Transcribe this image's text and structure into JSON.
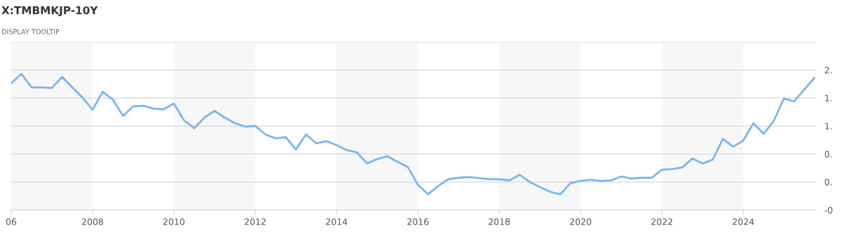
{
  "chart_data": {
    "type": "line",
    "title": "X:TMBMKJP-10Y",
    "subtitle": "DISPLAY TOOLTIP",
    "x": [
      2006.0,
      2006.25,
      2006.5,
      2006.75,
      2007.0,
      2007.25,
      2007.5,
      2007.75,
      2008.0,
      2008.25,
      2008.5,
      2008.75,
      2009.0,
      2009.25,
      2009.5,
      2009.75,
      2010.0,
      2010.25,
      2010.5,
      2010.75,
      2011.0,
      2011.25,
      2011.5,
      2011.75,
      2012.0,
      2012.25,
      2012.5,
      2012.75,
      2013.0,
      2013.25,
      2013.5,
      2013.75,
      2014.0,
      2014.25,
      2014.5,
      2014.75,
      2015.0,
      2015.25,
      2015.5,
      2015.75,
      2016.0,
      2016.25,
      2016.5,
      2016.75,
      2017.0,
      2017.25,
      2017.5,
      2017.75,
      2018.0,
      2018.25,
      2018.5,
      2018.75,
      2019.0,
      2019.25,
      2019.5,
      2019.75,
      2020.0,
      2020.25,
      2020.5,
      2020.75,
      2021.0,
      2021.25,
      2021.5,
      2021.75,
      2022.0,
      2022.25,
      2022.5,
      2022.75,
      2023.0,
      2023.25,
      2023.5,
      2023.75,
      2024.0,
      2024.25,
      2024.5,
      2024.75,
      2025.0,
      2025.25,
      2025.5,
      2025.75
    ],
    "series": [
      {
        "color": "#7cb5ec",
        "values": [
          1.76,
          1.93,
          1.69,
          1.69,
          1.68,
          1.875,
          1.69,
          1.51,
          1.29,
          1.61,
          1.47,
          1.18,
          1.35,
          1.36,
          1.31,
          1.3,
          1.4,
          1.1,
          0.96,
          1.15,
          1.27,
          1.15,
          1.05,
          0.99,
          1.0,
          0.85,
          0.78,
          0.8,
          0.58,
          0.85,
          0.69,
          0.73,
          0.66,
          0.57,
          0.53,
          0.33,
          0.41,
          0.46,
          0.36,
          0.27,
          -0.05,
          -0.22,
          -0.07,
          0.05,
          0.075,
          0.09,
          0.07,
          0.05,
          0.05,
          0.03,
          0.13,
          0.0,
          -0.09,
          -0.175,
          -0.22,
          -0.02,
          0.02,
          0.04,
          0.02,
          0.03,
          0.1,
          0.06,
          0.075,
          0.075,
          0.22,
          0.23,
          0.26,
          0.42,
          0.33,
          0.4,
          0.77,
          0.63,
          0.74,
          1.05,
          0.86,
          1.09,
          1.49,
          1.44,
          1.65,
          1.86
        ]
      }
    ],
    "xlim": [
      2006.0,
      2025.8
    ],
    "xticks": [
      {
        "value": 2006,
        "label": "06"
      },
      2008,
      2010,
      2012,
      2014,
      2016,
      2018,
      2020,
      2022,
      2024
    ],
    "ylim": [
      -0.5,
      2.5
    ],
    "yticks": [
      {
        "value": -0.5,
        "label": "-0"
      },
      {
        "value": 0,
        "label": "0."
      },
      {
        "value": 0.5,
        "label": "0."
      },
      {
        "value": 1,
        "label": "1."
      },
      {
        "value": 1.5,
        "label": "1."
      },
      {
        "value": 2,
        "label": "2."
      },
      {
        "value": 2.5,
        "label": null
      }
    ],
    "bands": [
      {
        "axis": "x",
        "from": 2006,
        "to": 2008,
        "color": "#f7f7f7"
      },
      {
        "axis": "x",
        "from": 2010,
        "to": 2012,
        "color": "#f7f7f7"
      },
      {
        "axis": "x",
        "from": 2014,
        "to": 2016,
        "color": "#f7f7f7"
      },
      {
        "axis": "x",
        "from": 2018,
        "to": 2020,
        "color": "#f7f7f7"
      },
      {
        "axis": "x",
        "from": 2022,
        "to": 2024,
        "color": "#f7f7f7"
      }
    ],
    "grid": "y",
    "marker": "none",
    "line_style": "solid"
  }
}
